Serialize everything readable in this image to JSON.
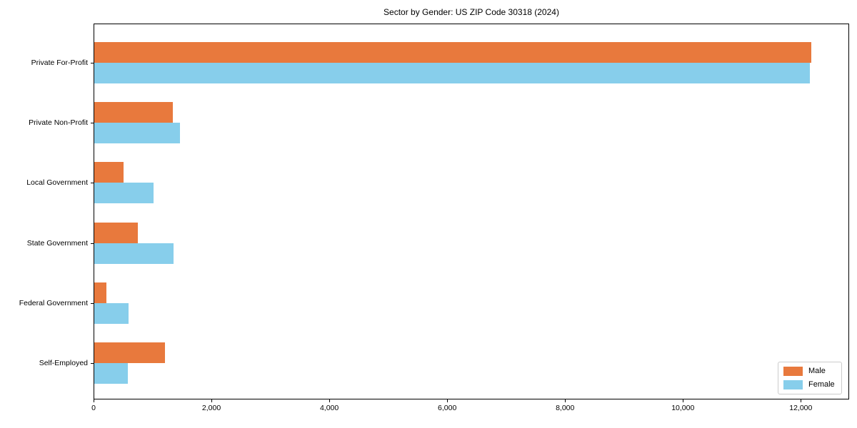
{
  "chart_data": {
    "type": "bar",
    "orientation": "horizontal",
    "title": "Sector by Gender: US ZIP Code 30318 (2024)",
    "categories": [
      "Private For-Profit",
      "Private Non-Profit",
      "Local Government",
      "State Government",
      "Federal Government",
      "Self-Employed"
    ],
    "series": [
      {
        "name": "Male",
        "color": "#e8793d",
        "values": [
          12170,
          1330,
          500,
          740,
          210,
          1200
        ]
      },
      {
        "name": "Female",
        "color": "#87ceeb",
        "values": [
          12140,
          1460,
          1010,
          1350,
          580,
          570
        ]
      }
    ],
    "xlim": [
      0,
      12820
    ],
    "xticks": {
      "values": [
        0,
        2000,
        4000,
        6000,
        8000,
        10000,
        12000
      ],
      "labels": [
        "0",
        "2,000",
        "4,000",
        "6,000",
        "8,000",
        "10,000",
        "12,000"
      ]
    },
    "ylabel": "",
    "xlabel": "",
    "grid": false,
    "legend": {
      "position": "lower right",
      "entries": [
        "Male",
        "Female"
      ]
    },
    "colors": {
      "spine": "#000000",
      "text": "#000000",
      "legend_border": "#cccccc",
      "background": "#ffffff"
    }
  }
}
